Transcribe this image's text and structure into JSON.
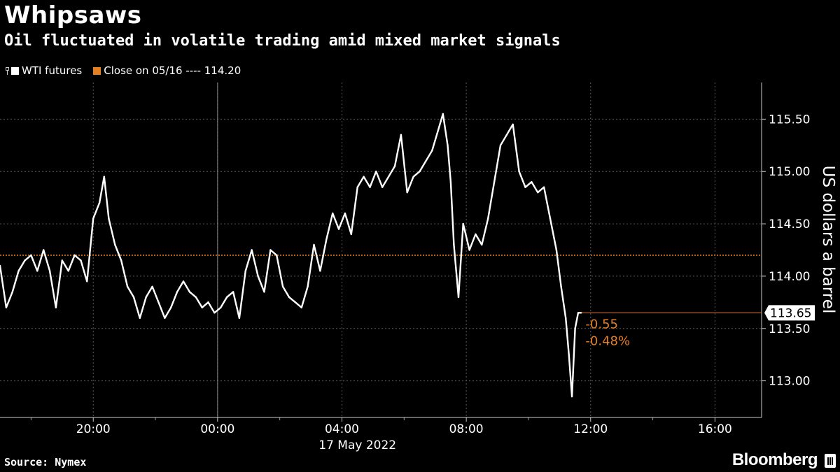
{
  "title": "Whipsaws",
  "subtitle": "Oil fluctuated in volatile trading amid mixed market signals",
  "legend": {
    "series_label": "WTI futures",
    "close_label": "Close on 05/16 ---- 114.20"
  },
  "source": "Source: Nymex",
  "brand": "Bloomberg",
  "colors": {
    "background": "#000000",
    "series": "#ffffff",
    "close_line": "#e67e22",
    "grid": "#666666"
  },
  "chart_data": {
    "type": "line",
    "title": "Whipsaws",
    "subtitle": "Oil fluctuated in volatile trading amid mixed market signals",
    "xlabel": "17 May 2022",
    "ylabel": "US dollars a barrel",
    "x_tick_labels": [
      "20:00",
      "00:00",
      "04:00",
      "08:00",
      "12:00",
      "16:00"
    ],
    "x_tick_hours": [
      20,
      24,
      28,
      32,
      36,
      40
    ],
    "xlim_hours": [
      17.0,
      41.5
    ],
    "ylim": [
      112.65,
      115.85
    ],
    "y_ticks": [
      113.0,
      113.5,
      114.0,
      114.5,
      115.0,
      115.5
    ],
    "y_tick_labels": [
      "113.00",
      "113.50",
      "114.00",
      "114.50",
      "115.00",
      "115.50"
    ],
    "grid": true,
    "legend_position": "top-left",
    "reference_line": {
      "label": "Close on 05/16",
      "value": 114.2
    },
    "last_value_label": "113.65",
    "change_labels": [
      "-0.55",
      "-0.48%"
    ],
    "series": [
      {
        "name": "WTI futures",
        "points": [
          [
            17.0,
            114.1
          ],
          [
            17.2,
            113.7
          ],
          [
            17.4,
            113.85
          ],
          [
            17.6,
            114.05
          ],
          [
            17.8,
            114.15
          ],
          [
            18.0,
            114.2
          ],
          [
            18.2,
            114.05
          ],
          [
            18.4,
            114.25
          ],
          [
            18.6,
            114.05
          ],
          [
            18.8,
            113.7
          ],
          [
            19.0,
            114.15
          ],
          [
            19.2,
            114.05
          ],
          [
            19.4,
            114.2
          ],
          [
            19.6,
            114.15
          ],
          [
            19.8,
            113.95
          ],
          [
            20.0,
            114.55
          ],
          [
            20.2,
            114.7
          ],
          [
            20.35,
            114.95
          ],
          [
            20.5,
            114.55
          ],
          [
            20.7,
            114.3
          ],
          [
            20.9,
            114.15
          ],
          [
            21.1,
            113.9
          ],
          [
            21.3,
            113.8
          ],
          [
            21.5,
            113.6
          ],
          [
            21.7,
            113.8
          ],
          [
            21.9,
            113.9
          ],
          [
            22.1,
            113.75
          ],
          [
            22.3,
            113.6
          ],
          [
            22.5,
            113.7
          ],
          [
            22.7,
            113.85
          ],
          [
            22.9,
            113.95
          ],
          [
            23.1,
            113.85
          ],
          [
            23.3,
            113.8
          ],
          [
            23.5,
            113.7
          ],
          [
            23.7,
            113.75
          ],
          [
            23.9,
            113.65
          ],
          [
            24.1,
            113.7
          ],
          [
            24.3,
            113.8
          ],
          [
            24.5,
            113.85
          ],
          [
            24.7,
            113.6
          ],
          [
            24.9,
            114.05
          ],
          [
            25.1,
            114.25
          ],
          [
            25.3,
            114.0
          ],
          [
            25.5,
            113.85
          ],
          [
            25.7,
            114.25
          ],
          [
            25.9,
            114.2
          ],
          [
            26.1,
            113.9
          ],
          [
            26.3,
            113.8
          ],
          [
            26.5,
            113.75
          ],
          [
            26.7,
            113.7
          ],
          [
            26.9,
            113.9
          ],
          [
            27.1,
            114.3
          ],
          [
            27.3,
            114.05
          ],
          [
            27.5,
            114.35
          ],
          [
            27.7,
            114.6
          ],
          [
            27.9,
            114.45
          ],
          [
            28.1,
            114.6
          ],
          [
            28.3,
            114.4
          ],
          [
            28.5,
            114.85
          ],
          [
            28.7,
            114.95
          ],
          [
            28.9,
            114.85
          ],
          [
            29.1,
            115.0
          ],
          [
            29.3,
            114.85
          ],
          [
            29.5,
            114.95
          ],
          [
            29.7,
            115.05
          ],
          [
            29.9,
            115.35
          ],
          [
            30.1,
            114.8
          ],
          [
            30.3,
            114.95
          ],
          [
            30.5,
            115.0
          ],
          [
            30.7,
            115.1
          ],
          [
            30.9,
            115.2
          ],
          [
            31.1,
            115.4
          ],
          [
            31.25,
            115.55
          ],
          [
            31.4,
            115.25
          ],
          [
            31.5,
            114.9
          ],
          [
            31.6,
            114.3
          ],
          [
            31.75,
            113.8
          ],
          [
            31.9,
            114.5
          ],
          [
            32.1,
            114.25
          ],
          [
            32.3,
            114.4
          ],
          [
            32.5,
            114.3
          ],
          [
            32.7,
            114.55
          ],
          [
            32.9,
            114.9
          ],
          [
            33.1,
            115.25
          ],
          [
            33.3,
            115.35
          ],
          [
            33.5,
            115.45
          ],
          [
            33.7,
            115.0
          ],
          [
            33.9,
            114.85
          ],
          [
            34.1,
            114.9
          ],
          [
            34.3,
            114.8
          ],
          [
            34.5,
            114.85
          ],
          [
            34.7,
            114.55
          ],
          [
            34.9,
            114.25
          ],
          [
            35.05,
            113.9
          ],
          [
            35.2,
            113.6
          ],
          [
            35.3,
            113.25
          ],
          [
            35.4,
            112.85
          ],
          [
            35.5,
            113.5
          ],
          [
            35.6,
            113.65
          ],
          [
            35.7,
            113.65
          ]
        ]
      }
    ]
  }
}
